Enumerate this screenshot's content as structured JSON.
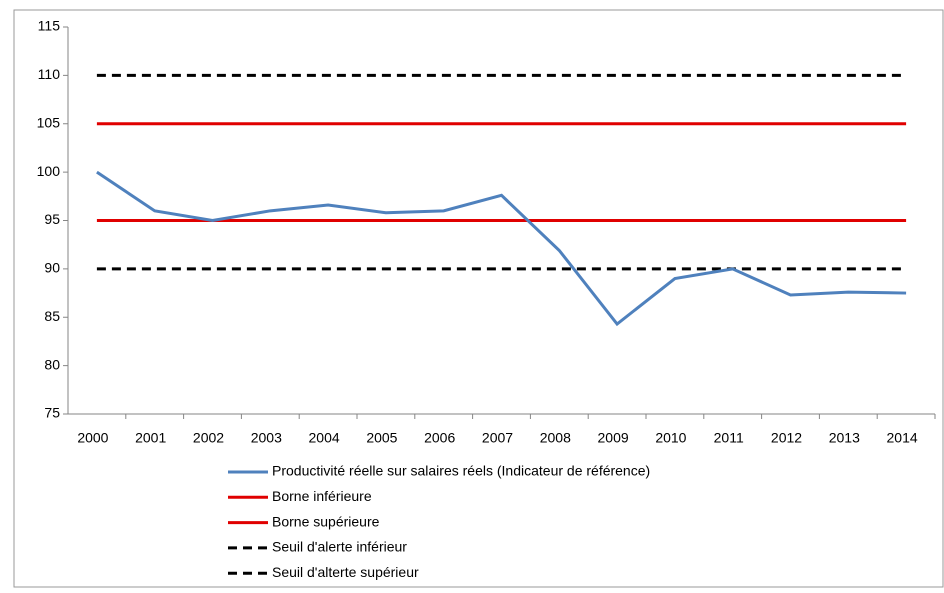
{
  "chart_data": {
    "type": "line",
    "categories": [
      "2000",
      "2001",
      "2002",
      "2003",
      "2004",
      "2005",
      "2006",
      "2007",
      "2008",
      "2009",
      "2010",
      "2011",
      "2012",
      "2013",
      "2014"
    ],
    "series": [
      {
        "name": "Productivité réelle sur salaires réels (Indicateur de référence)",
        "color": "#4f81bd",
        "dashed": false,
        "values": [
          100,
          96,
          95,
          96,
          96.6,
          95.8,
          96,
          97.6,
          91.9,
          84.3,
          89,
          90,
          87.3,
          87.6,
          87.5
        ]
      },
      {
        "name": "Borne inférieure",
        "color": "#e00000",
        "dashed": false,
        "values": [
          95,
          95,
          95,
          95,
          95,
          95,
          95,
          95,
          95,
          95,
          95,
          95,
          95,
          95,
          95
        ]
      },
      {
        "name": "Borne supérieure",
        "color": "#e00000",
        "dashed": false,
        "values": [
          105,
          105,
          105,
          105,
          105,
          105,
          105,
          105,
          105,
          105,
          105,
          105,
          105,
          105,
          105
        ]
      },
      {
        "name": "Seuil d'alerte inférieur",
        "color": "#000000",
        "dashed": true,
        "values": [
          90,
          90,
          90,
          90,
          90,
          90,
          90,
          90,
          90,
          90,
          90,
          90,
          90,
          90,
          90
        ]
      },
      {
        "name": "Seuil d'alterte supérieur",
        "color": "#000000",
        "dashed": true,
        "values": [
          110,
          110,
          110,
          110,
          110,
          110,
          110,
          110,
          110,
          110,
          110,
          110,
          110,
          110,
          110
        ]
      }
    ],
    "ylim": [
      75,
      115
    ],
    "yticks": [
      75,
      80,
      85,
      90,
      95,
      100,
      105,
      110,
      115
    ],
    "legend": "bottom"
  }
}
